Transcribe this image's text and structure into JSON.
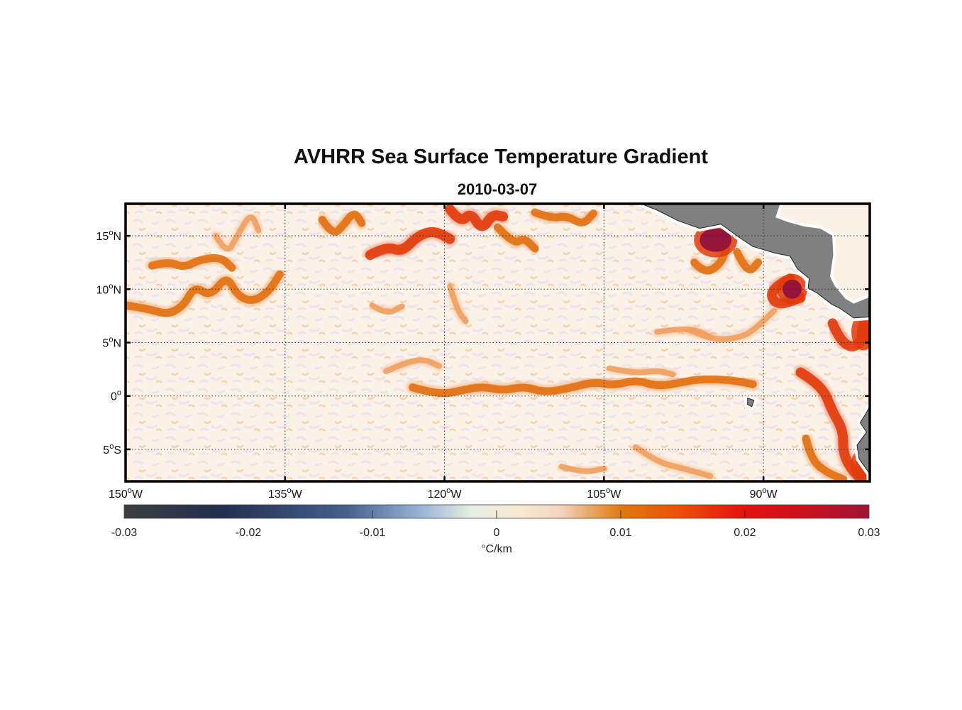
{
  "title": "AVHRR Sea Surface Temperature Gradient",
  "subtitle": "2010-03-07",
  "map": {
    "lon_range": [
      -150,
      -80
    ],
    "lat_range": [
      -8,
      18
    ],
    "lat_ticks": [
      {
        "value": 15,
        "base": "15",
        "sup": "o",
        "hemi": "N"
      },
      {
        "value": 10,
        "base": "10",
        "sup": "o",
        "hemi": "N"
      },
      {
        "value": 5,
        "base": "5",
        "sup": "o",
        "hemi": "N"
      },
      {
        "value": 0,
        "base": "0",
        "sup": "o",
        "hemi": ""
      },
      {
        "value": -5,
        "base": "5",
        "sup": "o",
        "hemi": "S"
      }
    ],
    "lon_ticks": [
      {
        "value": -150,
        "base": "150",
        "sup": "o",
        "hemi": "W"
      },
      {
        "value": -135,
        "base": "135",
        "sup": "o",
        "hemi": "W"
      },
      {
        "value": -120,
        "base": "120",
        "sup": "o",
        "hemi": "W"
      },
      {
        "value": -105,
        "base": "105",
        "sup": "o",
        "hemi": "W"
      },
      {
        "value": -90,
        "base": "90",
        "sup": "o",
        "hemi": "W"
      }
    ],
    "land_color": "#808080",
    "ocean_base_color": "#fbf1e6",
    "fronts": [
      {
        "points": [
          [
            -150,
            8.5
          ],
          [
            -148,
            8.2
          ],
          [
            -146,
            7.6
          ],
          [
            -144.5,
            8.5
          ],
          [
            -143.5,
            10.3
          ],
          [
            -142,
            9.3
          ],
          [
            -140.5,
            11.3
          ],
          [
            -139.5,
            9.4
          ],
          [
            -138,
            8.8
          ],
          [
            -136.5,
            9.8
          ],
          [
            -135.5,
            11.4
          ]
        ],
        "level": "medium"
      },
      {
        "points": [
          [
            -147.5,
            12.2
          ],
          [
            -146,
            12.6
          ],
          [
            -144.5,
            12.0
          ],
          [
            -143,
            12.8
          ],
          [
            -141,
            13.0
          ],
          [
            -140,
            12.0
          ]
        ],
        "level": "medium"
      },
      {
        "points": [
          [
            -141.5,
            15.0
          ],
          [
            -140.5,
            13.2
          ],
          [
            -139.5,
            15.0
          ],
          [
            -138.2,
            17.2
          ],
          [
            -137.5,
            15.5
          ]
        ],
        "level": "light"
      },
      {
        "points": [
          [
            -131.5,
            16.5
          ],
          [
            -130.5,
            15.0
          ],
          [
            -129.5,
            16.0
          ],
          [
            -128.5,
            17.3
          ],
          [
            -127.8,
            16.2
          ]
        ],
        "level": "medium"
      },
      {
        "points": [
          [
            -127,
            13.2
          ],
          [
            -125.5,
            14.0
          ],
          [
            -124,
            13.5
          ],
          [
            -122.5,
            15.0
          ],
          [
            -121,
            15.5
          ],
          [
            -119.5,
            14.7
          ]
        ],
        "level": "strong"
      },
      {
        "points": [
          [
            -119.5,
            17.5
          ],
          [
            -118.5,
            16.2
          ],
          [
            -117.5,
            17.2
          ],
          [
            -116.5,
            15.5
          ],
          [
            -115.5,
            17.0
          ],
          [
            -114.5,
            16.8
          ]
        ],
        "level": "strong"
      },
      {
        "points": [
          [
            -115,
            15.8
          ],
          [
            -113.5,
            14.2
          ],
          [
            -112.5,
            14.8
          ],
          [
            -111.5,
            13.8
          ]
        ],
        "level": "medium"
      },
      {
        "points": [
          [
            -111.5,
            17.2
          ],
          [
            -110,
            16.6
          ],
          [
            -108.5,
            16.9
          ],
          [
            -107,
            16.0
          ],
          [
            -106,
            17.1
          ]
        ],
        "level": "medium"
      },
      {
        "points": [
          [
            -126.8,
            8.5
          ],
          [
            -125.5,
            7.6
          ],
          [
            -124,
            8.4
          ]
        ],
        "level": "light"
      },
      {
        "points": [
          [
            -125.5,
            2.3
          ],
          [
            -124,
            3.0
          ],
          [
            -122,
            3.5
          ],
          [
            -120.5,
            2.8
          ]
        ],
        "level": "light"
      },
      {
        "points": [
          [
            -123,
            0.8
          ],
          [
            -120.5,
            0.1
          ],
          [
            -118.5,
            0.5
          ],
          [
            -116.5,
            0.9
          ],
          [
            -114.5,
            0.5
          ],
          [
            -112.5,
            0.9
          ],
          [
            -110.5,
            0.3
          ],
          [
            -108,
            0.8
          ],
          [
            -106,
            1.3
          ],
          [
            -104,
            1.0
          ],
          [
            -102,
            1.5
          ],
          [
            -100,
            0.9
          ],
          [
            -98,
            1.2
          ],
          [
            -96,
            1.6
          ],
          [
            -93,
            1.5
          ],
          [
            -91,
            1.1
          ]
        ],
        "level": "medium"
      },
      {
        "points": [
          [
            -104.5,
            2.6
          ],
          [
            -102,
            2.1
          ],
          [
            -100,
            2.4
          ],
          [
            -98.5,
            2.0
          ]
        ],
        "level": "light"
      },
      {
        "points": [
          [
            -96.5,
            12.5
          ],
          [
            -95.5,
            11.4
          ],
          [
            -94,
            12.4
          ],
          [
            -93.5,
            13.8
          ]
        ],
        "level": "medium"
      },
      {
        "points": [
          [
            -92.5,
            13.5
          ],
          [
            -91.5,
            11.4
          ],
          [
            -90.5,
            12.5
          ]
        ],
        "level": "medium"
      },
      {
        "points": [
          [
            -87.5,
            11.0
          ],
          [
            -89.5,
            10.0
          ],
          [
            -88.8,
            8.4
          ],
          [
            -86.5,
            9.2
          ]
        ],
        "level": "strong"
      },
      {
        "points": [
          [
            -89,
            8.0
          ],
          [
            -90.5,
            6.5
          ],
          [
            -92,
            5.5
          ],
          [
            -94.5,
            5.2
          ],
          [
            -97,
            6.2
          ]
        ],
        "level": "light"
      },
      {
        "points": [
          [
            -83.5,
            6.8
          ],
          [
            -82.8,
            5.2
          ],
          [
            -81.5,
            4.4
          ],
          [
            -80.5,
            5.6
          ]
        ],
        "level": "strong"
      },
      {
        "points": [
          [
            -86.5,
            2.2
          ],
          [
            -84.5,
            1.0
          ],
          [
            -83.5,
            -1.5
          ],
          [
            -82.5,
            -3.2
          ],
          [
            -82.5,
            -5.5
          ],
          [
            -81.5,
            -7.2
          ],
          [
            -80.5,
            -8
          ]
        ],
        "level": "strong"
      },
      {
        "points": [
          [
            -86,
            -4.0
          ],
          [
            -85.5,
            -6.0
          ],
          [
            -84,
            -7.2
          ],
          [
            -82.5,
            -7.8
          ]
        ],
        "level": "medium"
      },
      {
        "points": [
          [
            -102,
            -4.8
          ],
          [
            -100,
            -6.2
          ],
          [
            -97.5,
            -6.8
          ],
          [
            -95,
            -7.5
          ]
        ],
        "level": "light"
      },
      {
        "points": [
          [
            -109,
            -6.6
          ],
          [
            -107,
            -7.2
          ],
          [
            -105,
            -6.8
          ]
        ],
        "level": "light"
      },
      {
        "points": [
          [
            -119.5,
            10.3
          ],
          [
            -118.8,
            8.0
          ],
          [
            -118,
            7.0
          ]
        ],
        "level": "light"
      },
      {
        "points": [
          [
            -100,
            6.0
          ],
          [
            -97,
            6.5
          ],
          [
            -95,
            5.5
          ]
        ],
        "level": "light"
      }
    ],
    "hotspots": [
      {
        "lon": -94.5,
        "lat": 14.6,
        "rx": 1.5,
        "ry": 1.1,
        "level": "max"
      },
      {
        "lon": -87.3,
        "lat": 10.0,
        "rx": 0.9,
        "ry": 0.9,
        "level": "max"
      },
      {
        "lon": -80.6,
        "lat": 6.0,
        "rx": 0.6,
        "ry": 1.2,
        "level": "strong"
      },
      {
        "lon": -80.5,
        "lat": -6.5,
        "rx": 0.8,
        "ry": 1.0,
        "level": "strong"
      }
    ],
    "land": [
      {
        "name": "mexico-central-america",
        "points": [
          [
            -101.5,
            18
          ],
          [
            -100,
            17.4
          ],
          [
            -98,
            16.4
          ],
          [
            -96,
            15.7
          ],
          [
            -94,
            16.1
          ],
          [
            -92.5,
            15.0
          ],
          [
            -91,
            14.0
          ],
          [
            -89,
            13.4
          ],
          [
            -87.5,
            13.1
          ],
          [
            -86.8,
            11.9
          ],
          [
            -85.7,
            11.0
          ],
          [
            -85.8,
            10.1
          ],
          [
            -84.9,
            9.6
          ],
          [
            -83.6,
            8.6
          ],
          [
            -82.8,
            8.2
          ],
          [
            -81.5,
            7.3
          ],
          [
            -80.1,
            7.4
          ],
          [
            -80,
            18
          ]
        ]
      },
      {
        "name": "yucatan-gulf-water",
        "points": [
          [
            -88.3,
            18
          ],
          [
            -88.7,
            16.8
          ],
          [
            -87.6,
            16.4
          ],
          [
            -86.1,
            16.0
          ],
          [
            -84.6,
            15.8
          ],
          [
            -83.4,
            15.1
          ],
          [
            -83.3,
            13.2
          ],
          [
            -83.6,
            11.2
          ],
          [
            -83.2,
            10.4
          ],
          [
            -82.2,
            9.2
          ],
          [
            -81.5,
            8.8
          ],
          [
            -80,
            9.4
          ],
          [
            -80,
            18
          ]
        ],
        "water": true
      },
      {
        "name": "south-america-coast",
        "points": [
          [
            -80,
            -8
          ],
          [
            -80,
            -1.0
          ],
          [
            -80.4,
            -1.7
          ],
          [
            -80.9,
            -2.5
          ],
          [
            -80.3,
            -3.4
          ],
          [
            -81.2,
            -4.6
          ],
          [
            -81.0,
            -5.9
          ],
          [
            -80,
            -7.3
          ]
        ]
      },
      {
        "name": "galapagos",
        "points": [
          [
            -91.5,
            -0.2
          ],
          [
            -90.9,
            -0.4
          ],
          [
            -91.1,
            -1.0
          ],
          [
            -91.5,
            -0.8
          ]
        ]
      }
    ]
  },
  "colorbar": {
    "min": -0.03,
    "max": 0.03,
    "ticks": [
      "-0.03",
      "-0.02",
      "-0.01",
      "0",
      "0.01",
      "0.02",
      "0.03"
    ],
    "unit": "°C/km",
    "stops": [
      {
        "value": -0.03,
        "color": "#3b3d3f"
      },
      {
        "value": -0.022,
        "color": "#23304f"
      },
      {
        "value": -0.012,
        "color": "#45618e"
      },
      {
        "value": -0.006,
        "color": "#9bb6d8"
      },
      {
        "value": -0.002,
        "color": "#e6efe4"
      },
      {
        "value": 0.002,
        "color": "#fbe9d2"
      },
      {
        "value": 0.005,
        "color": "#f3d7c4"
      },
      {
        "value": 0.01,
        "color": "#e07a0c"
      },
      {
        "value": 0.015,
        "color": "#ea4d08"
      },
      {
        "value": 0.02,
        "color": "#e41211"
      },
      {
        "value": 0.025,
        "color": "#c8101e"
      },
      {
        "value": 0.03,
        "color": "#a01436"
      }
    ]
  },
  "colors": {
    "light": "#f0a060",
    "medium": "#e27011",
    "strong": "#e23b0c",
    "max": "#98153a"
  }
}
